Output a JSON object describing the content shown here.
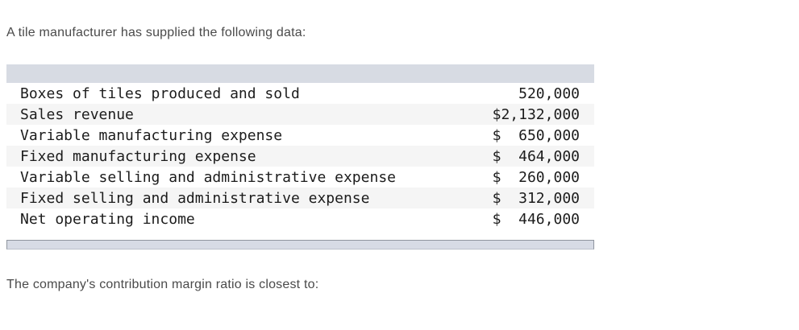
{
  "page": {
    "intro_text": "A tile manufacturer has supplied the following data:",
    "footer_text": "The company's contribution margin ratio is closest to:"
  },
  "table": {
    "rows": [
      {
        "label": "Boxes of tiles produced and sold",
        "value": "   520,000"
      },
      {
        "label": "Sales revenue",
        "value": "$2,132,000"
      },
      {
        "label": "Variable manufacturing expense",
        "value": "$  650,000"
      },
      {
        "label": "Fixed manufacturing expense",
        "value": "$  464,000"
      },
      {
        "label": "Variable selling and administrative expense",
        "value": "$  260,000"
      },
      {
        "label": "Fixed selling and administrative expense",
        "value": "$  312,000"
      },
      {
        "label": "Net operating income",
        "value": "$  446,000"
      }
    ]
  },
  "colors": {
    "header_bar": "#d7dbe3",
    "row_stripe": "#f5f5f5",
    "scrollbar_track": "#d7dbe5",
    "scrollbar_border": "#8f959f",
    "paragraph_text": "#4a4a4a",
    "table_text": "#1c1c1c"
  }
}
